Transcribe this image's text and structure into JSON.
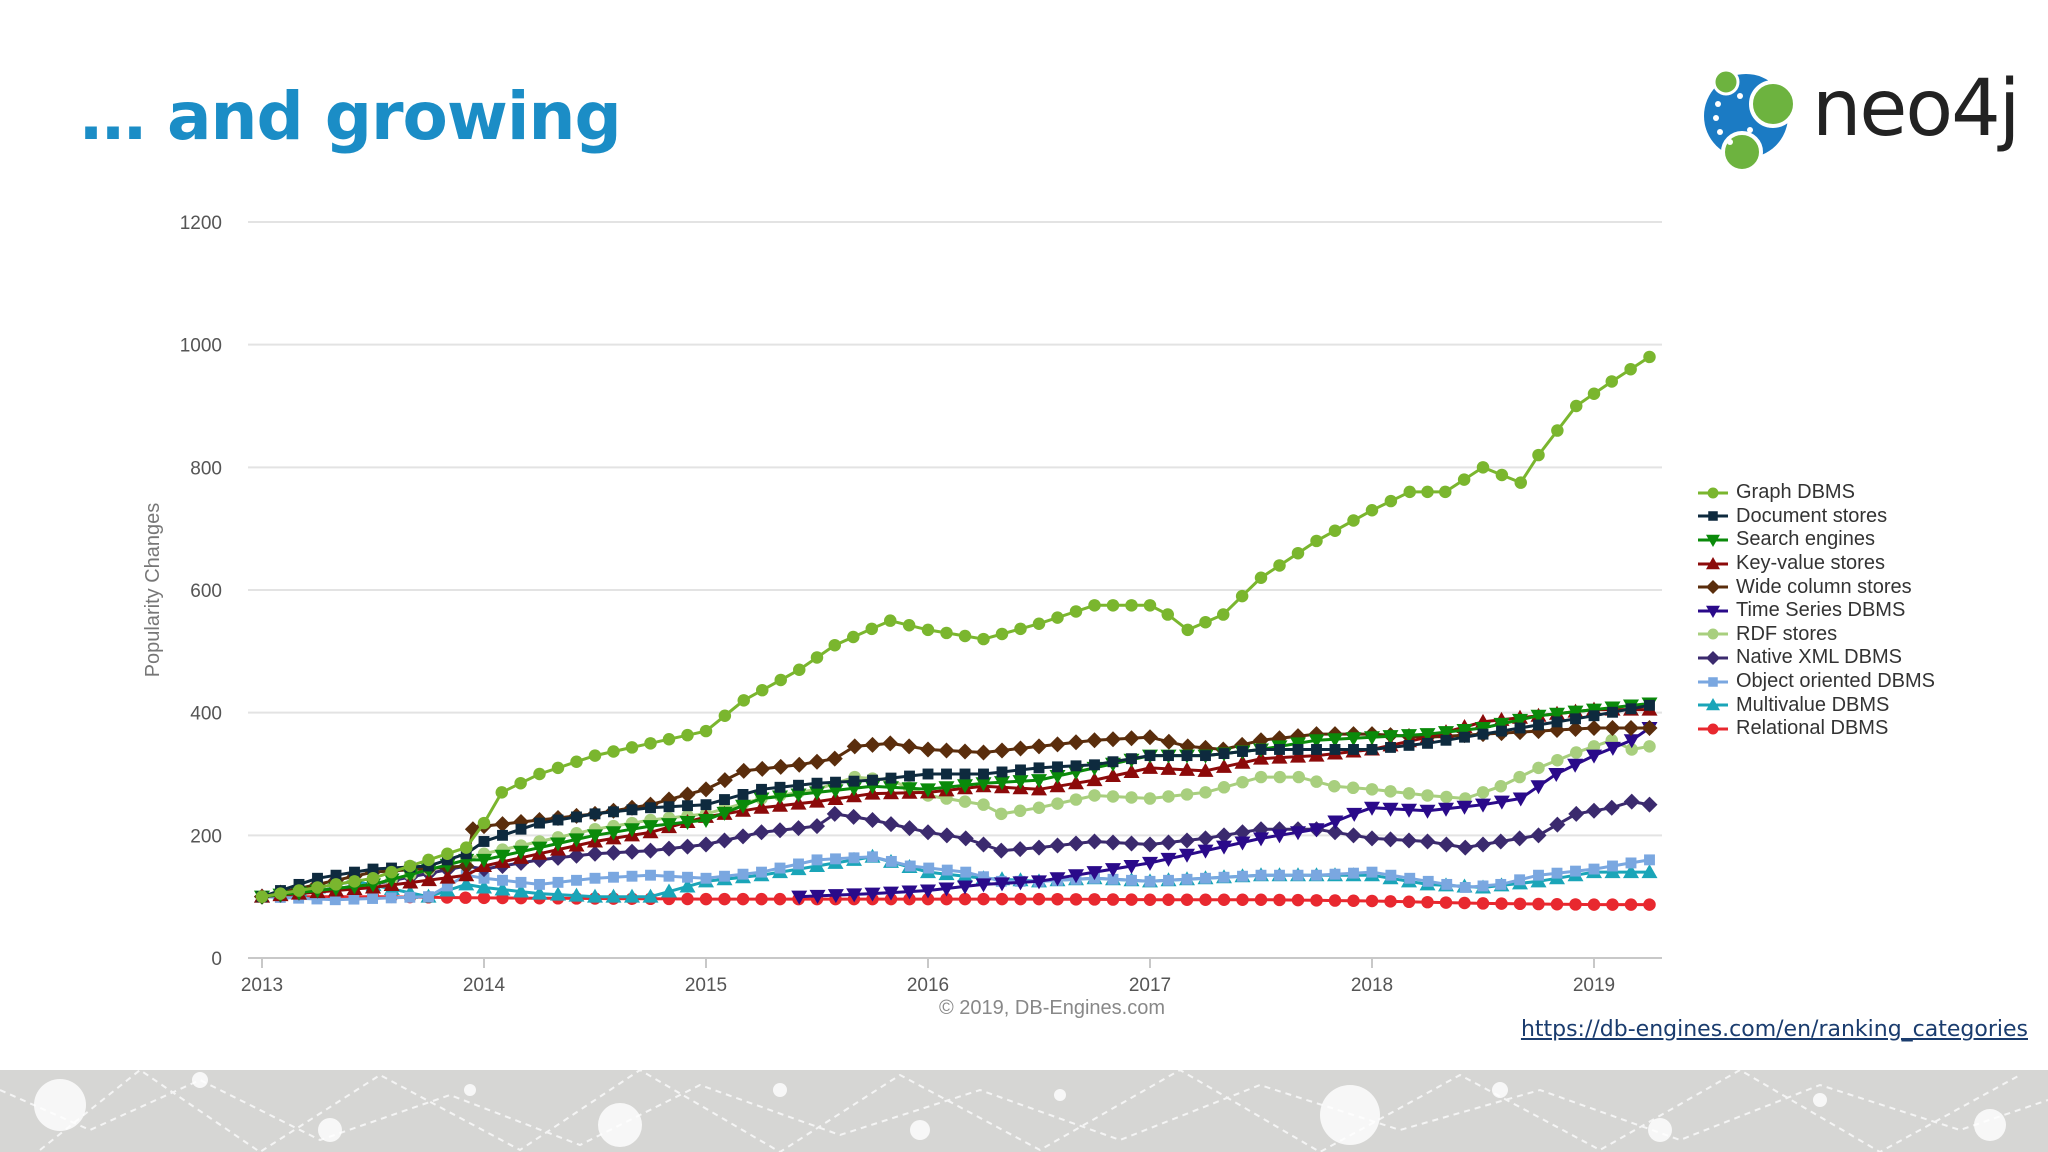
{
  "slide": {
    "title": "… and growing",
    "source_url": "https://db-engines.com/en/ranking_categories"
  },
  "brand": {
    "logo_text": "neo4j",
    "logo_colors": [
      "#1b7bc4",
      "#6db33f"
    ]
  },
  "chart_data": {
    "type": "line",
    "title": "",
    "xlabel": "",
    "ylabel": "Popularity Changes",
    "credit": "© 2019, DB-Engines.com",
    "ylim": [
      0,
      1200
    ],
    "yticks": [
      0,
      200,
      400,
      600,
      800,
      1000,
      1200
    ],
    "xlim": [
      2013,
      2019.3
    ],
    "xticks": [
      2013,
      2014,
      2015,
      2016,
      2017,
      2018,
      2019
    ],
    "grid": true,
    "legend_position": "right",
    "series": [
      {
        "name": "Graph DBMS",
        "color": "#7ab62e",
        "marker": "circle",
        "points": [
          [
            2013,
            100
          ],
          [
            2013.5,
            130
          ],
          [
            2013.75,
            160
          ],
          [
            2013.92,
            180
          ],
          [
            2014,
            220
          ],
          [
            2014.08,
            270
          ],
          [
            2014.25,
            300
          ],
          [
            2014.5,
            330
          ],
          [
            2014.75,
            350
          ],
          [
            2015,
            370
          ],
          [
            2015.17,
            420
          ],
          [
            2015.42,
            470
          ],
          [
            2015.58,
            510
          ],
          [
            2015.83,
            550
          ],
          [
            2016,
            535
          ],
          [
            2016.25,
            520
          ],
          [
            2016.5,
            545
          ],
          [
            2016.75,
            575
          ],
          [
            2017,
            575
          ],
          [
            2017.08,
            560
          ],
          [
            2017.17,
            535
          ],
          [
            2017.33,
            560
          ],
          [
            2017.5,
            620
          ],
          [
            2017.75,
            680
          ],
          [
            2018,
            730
          ],
          [
            2018.17,
            760
          ],
          [
            2018.33,
            760
          ],
          [
            2018.5,
            800
          ],
          [
            2018.67,
            775
          ],
          [
            2018.75,
            820
          ],
          [
            2018.92,
            900
          ],
          [
            2019.08,
            940
          ],
          [
            2019.25,
            980
          ]
        ]
      },
      {
        "name": "Document stores",
        "color": "#0e2a3e",
        "marker": "square",
        "points": [
          [
            2013,
            100
          ],
          [
            2013.25,
            130
          ],
          [
            2013.5,
            145
          ],
          [
            2013.75,
            150
          ],
          [
            2013.92,
            170
          ],
          [
            2014,
            190
          ],
          [
            2014.25,
            220
          ],
          [
            2014.5,
            235
          ],
          [
            2014.75,
            245
          ],
          [
            2015,
            250
          ],
          [
            2015.25,
            275
          ],
          [
            2015.5,
            285
          ],
          [
            2015.75,
            290
          ],
          [
            2016,
            300
          ],
          [
            2016.25,
            300
          ],
          [
            2016.5,
            310
          ],
          [
            2016.75,
            315
          ],
          [
            2017,
            330
          ],
          [
            2017.25,
            330
          ],
          [
            2017.5,
            340
          ],
          [
            2017.75,
            340
          ],
          [
            2018,
            340
          ],
          [
            2018.25,
            350
          ],
          [
            2018.5,
            365
          ],
          [
            2018.75,
            380
          ],
          [
            2019,
            395
          ],
          [
            2019.25,
            412
          ]
        ]
      },
      {
        "name": "Search engines",
        "color": "#0a8a0a",
        "marker": "triangle-down",
        "points": [
          [
            2013,
            100
          ],
          [
            2013.5,
            120
          ],
          [
            2013.92,
            160
          ],
          [
            2014,
            160
          ],
          [
            2014.25,
            180
          ],
          [
            2014.5,
            200
          ],
          [
            2014.75,
            215
          ],
          [
            2015,
            225
          ],
          [
            2015.25,
            260
          ],
          [
            2015.5,
            270
          ],
          [
            2015.75,
            280
          ],
          [
            2016,
            275
          ],
          [
            2016.25,
            285
          ],
          [
            2016.5,
            290
          ],
          [
            2016.75,
            310
          ],
          [
            2017,
            330
          ],
          [
            2017.25,
            330
          ],
          [
            2017.5,
            340
          ],
          [
            2017.75,
            355
          ],
          [
            2018,
            360
          ],
          [
            2018.25,
            365
          ],
          [
            2018.5,
            375
          ],
          [
            2018.75,
            395
          ],
          [
            2019,
            405
          ],
          [
            2019.25,
            415
          ]
        ]
      },
      {
        "name": "Key-value stores",
        "color": "#8c0a0a",
        "marker": "triangle-up",
        "points": [
          [
            2013,
            100
          ],
          [
            2013.5,
            115
          ],
          [
            2013.92,
            135
          ],
          [
            2014,
            150
          ],
          [
            2014.25,
            170
          ],
          [
            2014.5,
            190
          ],
          [
            2014.75,
            205
          ],
          [
            2015,
            230
          ],
          [
            2015.25,
            245
          ],
          [
            2015.5,
            255
          ],
          [
            2015.75,
            268
          ],
          [
            2016,
            270
          ],
          [
            2016.25,
            280
          ],
          [
            2016.5,
            275
          ],
          [
            2016.75,
            290
          ],
          [
            2017,
            310
          ],
          [
            2017.25,
            305
          ],
          [
            2017.5,
            325
          ],
          [
            2017.75,
            330
          ],
          [
            2018,
            340
          ],
          [
            2018.25,
            360
          ],
          [
            2018.5,
            385
          ],
          [
            2018.75,
            395
          ],
          [
            2019,
            405
          ],
          [
            2019.25,
            405
          ]
        ]
      },
      {
        "name": "Wide column stores",
        "color": "#5a2d0c",
        "marker": "diamond",
        "points": [
          [
            2013,
            100
          ],
          [
            2013.5,
            140
          ],
          [
            2013.92,
            150
          ],
          [
            2013.95,
            210
          ],
          [
            2014,
            215
          ],
          [
            2014.25,
            225
          ],
          [
            2014.5,
            235
          ],
          [
            2014.75,
            250
          ],
          [
            2015,
            275
          ],
          [
            2015.17,
            305
          ],
          [
            2015.42,
            315
          ],
          [
            2015.58,
            325
          ],
          [
            2015.67,
            345
          ],
          [
            2015.83,
            350
          ],
          [
            2016,
            340
          ],
          [
            2016.25,
            335
          ],
          [
            2016.5,
            345
          ],
          [
            2016.75,
            355
          ],
          [
            2017,
            360
          ],
          [
            2017.17,
            345
          ],
          [
            2017.33,
            340
          ],
          [
            2017.5,
            355
          ],
          [
            2017.75,
            365
          ],
          [
            2018,
            365
          ],
          [
            2018.25,
            360
          ],
          [
            2018.5,
            365
          ],
          [
            2018.75,
            370
          ],
          [
            2019,
            375
          ],
          [
            2019.25,
            375
          ]
        ]
      },
      {
        "name": "Time Series DBMS",
        "color": "#2a0a8a",
        "marker": "triangle-down",
        "points": [
          [
            2015.42,
            100
          ],
          [
            2015.75,
            105
          ],
          [
            2016,
            110
          ],
          [
            2016.25,
            120
          ],
          [
            2016.5,
            125
          ],
          [
            2016.75,
            140
          ],
          [
            2017,
            155
          ],
          [
            2017.25,
            175
          ],
          [
            2017.5,
            195
          ],
          [
            2017.75,
            210
          ],
          [
            2017.92,
            235
          ],
          [
            2018,
            245
          ],
          [
            2018.25,
            240
          ],
          [
            2018.5,
            250
          ],
          [
            2018.67,
            260
          ],
          [
            2018.83,
            300
          ],
          [
            2019,
            330
          ],
          [
            2019.17,
            355
          ],
          [
            2019.25,
            375
          ]
        ]
      },
      {
        "name": "RDF stores",
        "color": "#a8cf7e",
        "marker": "circle",
        "points": [
          [
            2013,
            100
          ],
          [
            2013.5,
            120
          ],
          [
            2013.92,
            160
          ],
          [
            2014,
            170
          ],
          [
            2014.25,
            190
          ],
          [
            2014.5,
            210
          ],
          [
            2014.75,
            225
          ],
          [
            2015,
            235
          ],
          [
            2015.25,
            260
          ],
          [
            2015.5,
            275
          ],
          [
            2015.67,
            295
          ],
          [
            2015.83,
            290
          ],
          [
            2016,
            265
          ],
          [
            2016.25,
            250
          ],
          [
            2016.33,
            235
          ],
          [
            2016.5,
            245
          ],
          [
            2016.75,
            265
          ],
          [
            2017,
            260
          ],
          [
            2017.25,
            270
          ],
          [
            2017.5,
            295
          ],
          [
            2017.67,
            295
          ],
          [
            2017.83,
            280
          ],
          [
            2018,
            275
          ],
          [
            2018.25,
            265
          ],
          [
            2018.42,
            260
          ],
          [
            2018.58,
            280
          ],
          [
            2018.75,
            310
          ],
          [
            2018.92,
            335
          ],
          [
            2019.08,
            355
          ],
          [
            2019.17,
            340
          ],
          [
            2019.25,
            345
          ]
        ]
      },
      {
        "name": "Native XML DBMS",
        "color": "#3b2a6e",
        "marker": "diamond",
        "points": [
          [
            2013,
            100
          ],
          [
            2013.5,
            120
          ],
          [
            2013.92,
            150
          ],
          [
            2014,
            145
          ],
          [
            2014.25,
            160
          ],
          [
            2014.5,
            170
          ],
          [
            2014.75,
            175
          ],
          [
            2015,
            185
          ],
          [
            2015.25,
            205
          ],
          [
            2015.5,
            215
          ],
          [
            2015.58,
            235
          ],
          [
            2015.75,
            225
          ],
          [
            2016,
            205
          ],
          [
            2016.17,
            195
          ],
          [
            2016.33,
            175
          ],
          [
            2016.5,
            180
          ],
          [
            2016.75,
            190
          ],
          [
            2017,
            185
          ],
          [
            2017.25,
            195
          ],
          [
            2017.5,
            210
          ],
          [
            2017.75,
            210
          ],
          [
            2018,
            195
          ],
          [
            2018.25,
            190
          ],
          [
            2018.42,
            180
          ],
          [
            2018.58,
            190
          ],
          [
            2018.75,
            200
          ],
          [
            2018.92,
            235
          ],
          [
            2019.08,
            245
          ],
          [
            2019.17,
            255
          ],
          [
            2019.25,
            250
          ]
        ]
      },
      {
        "name": "Object oriented DBMS",
        "color": "#7aa7e0",
        "marker": "square",
        "points": [
          [
            2013,
            100
          ],
          [
            2013.33,
            95
          ],
          [
            2013.75,
            100
          ],
          [
            2013.92,
            135
          ],
          [
            2014,
            130
          ],
          [
            2014.25,
            120
          ],
          [
            2014.5,
            130
          ],
          [
            2014.75,
            135
          ],
          [
            2015,
            130
          ],
          [
            2015.25,
            140
          ],
          [
            2015.5,
            160
          ],
          [
            2015.75,
            165
          ],
          [
            2015.92,
            150
          ],
          [
            2016.17,
            140
          ],
          [
            2016.33,
            125
          ],
          [
            2016.5,
            125
          ],
          [
            2016.75,
            130
          ],
          [
            2017,
            125
          ],
          [
            2017.25,
            130
          ],
          [
            2017.5,
            135
          ],
          [
            2017.75,
            135
          ],
          [
            2018,
            140
          ],
          [
            2018.17,
            130
          ],
          [
            2018.42,
            115
          ],
          [
            2018.58,
            120
          ],
          [
            2018.75,
            135
          ],
          [
            2019,
            145
          ],
          [
            2019.25,
            160
          ]
        ]
      },
      {
        "name": "Multivalue DBMS",
        "color": "#1aa5b8",
        "marker": "triangle-up",
        "points": [
          [
            2013,
            100
          ],
          [
            2013.42,
            125
          ],
          [
            2013.75,
            100
          ],
          [
            2013.92,
            120
          ],
          [
            2014,
            115
          ],
          [
            2014.25,
            105
          ],
          [
            2014.5,
            100
          ],
          [
            2014.75,
            100
          ],
          [
            2015,
            125
          ],
          [
            2015.25,
            135
          ],
          [
            2015.5,
            150
          ],
          [
            2015.75,
            165
          ],
          [
            2016,
            140
          ],
          [
            2016.25,
            130
          ],
          [
            2016.5,
            125
          ],
          [
            2016.75,
            130
          ],
          [
            2017,
            125
          ],
          [
            2017.25,
            130
          ],
          [
            2017.5,
            135
          ],
          [
            2017.75,
            135
          ],
          [
            2018,
            135
          ],
          [
            2018.25,
            120
          ],
          [
            2018.5,
            115
          ],
          [
            2018.75,
            125
          ],
          [
            2019,
            140
          ],
          [
            2019.25,
            140
          ]
        ]
      },
      {
        "name": "Relational DBMS",
        "color": "#e8282f",
        "marker": "circle",
        "points": [
          [
            2013,
            100
          ],
          [
            2013.5,
            100
          ],
          [
            2014,
            98
          ],
          [
            2014.5,
            97
          ],
          [
            2015,
            96
          ],
          [
            2015.5,
            96
          ],
          [
            2016,
            96
          ],
          [
            2016.5,
            96
          ],
          [
            2017,
            95
          ],
          [
            2017.5,
            95
          ],
          [
            2018,
            93
          ],
          [
            2018.5,
            89
          ],
          [
            2019,
            87
          ],
          [
            2019.25,
            87
          ]
        ]
      }
    ]
  }
}
